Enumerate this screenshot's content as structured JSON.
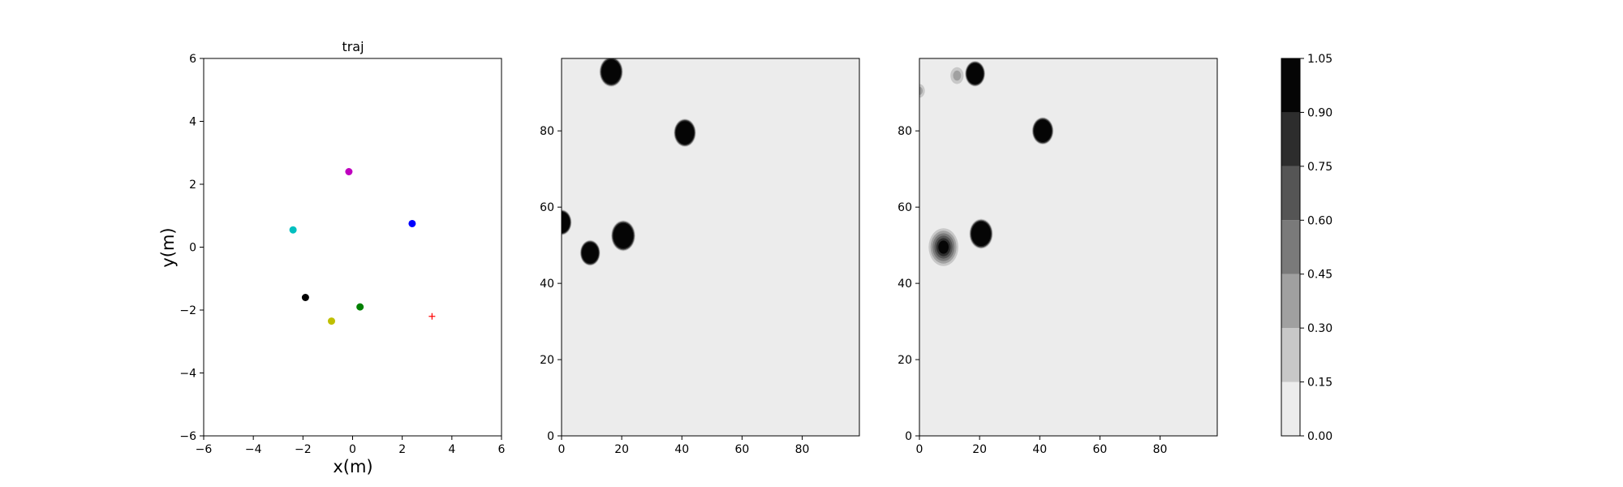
{
  "chart_data": [
    {
      "type": "scatter",
      "title": "traj",
      "xlabel": "x(m)",
      "ylabel": "y(m)",
      "xlim": [
        -6,
        6
      ],
      "ylim": [
        -6,
        6
      ],
      "xticks": [
        -6,
        -4,
        -2,
        0,
        2,
        4,
        6
      ],
      "yticks": [
        -6,
        -4,
        -2,
        0,
        2,
        4,
        6
      ],
      "tick_labels_x": [
        "−6",
        "−4",
        "−2",
        "0",
        "2",
        "4",
        "6"
      ],
      "tick_labels_y": [
        "−6",
        "−4",
        "−2",
        "0",
        "2",
        "4",
        "6"
      ],
      "grid": false,
      "points": [
        {
          "x": -0.15,
          "y": 2.4,
          "color": "#bf00bf",
          "marker": "circle"
        },
        {
          "x": -2.4,
          "y": 0.55,
          "color": "#00bfbf",
          "marker": "circle"
        },
        {
          "x": 2.4,
          "y": 0.75,
          "color": "#0000ff",
          "marker": "circle"
        },
        {
          "x": -1.9,
          "y": -1.6,
          "color": "#000000",
          "marker": "circle"
        },
        {
          "x": 0.3,
          "y": -1.9,
          "color": "#008000",
          "marker": "circle"
        },
        {
          "x": -0.85,
          "y": -2.35,
          "color": "#bfbf00",
          "marker": "circle"
        },
        {
          "x": 3.2,
          "y": -2.2,
          "color": "#ff0000",
          "marker": "plus"
        }
      ]
    },
    {
      "type": "heatmap",
      "title": "",
      "xlim": [
        0,
        99
      ],
      "ylim": [
        0,
        99
      ],
      "xticks": [
        0,
        20,
        40,
        60,
        80
      ],
      "yticks": [
        0,
        20,
        40,
        60,
        80
      ],
      "background_level": 0.0,
      "blobs": [
        {
          "cx": 16.5,
          "cy": 95.5,
          "r": 3.5
        },
        {
          "cx": 41.0,
          "cy": 79.5,
          "r": 3.3
        },
        {
          "cx": 0.0,
          "cy": 56.0,
          "r": 3.0
        },
        {
          "cx": 9.5,
          "cy": 48.0,
          "r": 3.0
        },
        {
          "cx": 20.5,
          "cy": 52.5,
          "r": 3.6
        }
      ]
    },
    {
      "type": "heatmap",
      "title": "",
      "xlim": [
        0,
        99
      ],
      "ylim": [
        0,
        99
      ],
      "xticks": [
        0,
        20,
        40,
        60,
        80
      ],
      "yticks": [
        0,
        20,
        40,
        60,
        80
      ],
      "background_level": 0.0,
      "blobs": [
        {
          "cx": 18.5,
          "cy": 95.0,
          "r": 3.0
        },
        {
          "cx": 12.5,
          "cy": 94.5,
          "r": 2.2,
          "faint": true
        },
        {
          "cx": 41.0,
          "cy": 80.0,
          "r": 3.2
        },
        {
          "cx": 0.0,
          "cy": 90.5,
          "r": 1.8,
          "faint": true
        },
        {
          "cx": 20.5,
          "cy": 53.0,
          "r": 3.5
        },
        {
          "cx": 8.0,
          "cy": 49.5,
          "r": 4.3,
          "soft": true
        }
      ]
    }
  ],
  "colorbar": {
    "levels": [
      0.0,
      0.15,
      0.3,
      0.45,
      0.6,
      0.75,
      0.9,
      1.05
    ],
    "tick_labels": [
      "0.00",
      "0.15",
      "0.30",
      "0.45",
      "0.60",
      "0.75",
      "0.90",
      "1.05"
    ],
    "colors": [
      "#ececec",
      "#c8c8c8",
      "#a0a0a0",
      "#7a7a7a",
      "#555555",
      "#2d2d2d",
      "#050505"
    ]
  }
}
